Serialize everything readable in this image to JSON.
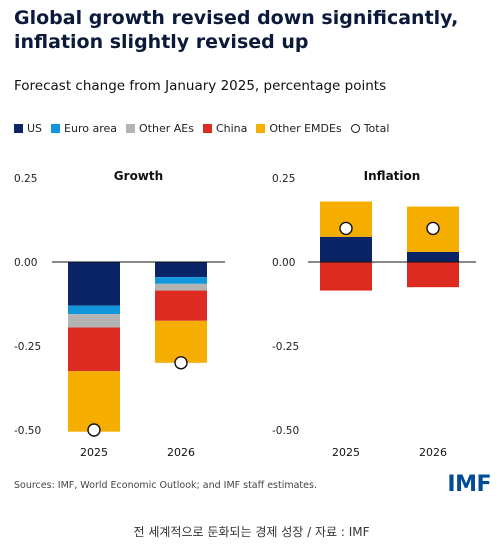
{
  "title": "Global growth revised down significantly, inflation slightly revised up",
  "subtitle": "Forecast change from January 2025, percentage points",
  "legend": [
    {
      "label": "US",
      "color": "#0a2467",
      "shape": "square"
    },
    {
      "label": "Euro area",
      "color": "#1296db",
      "shape": "square"
    },
    {
      "label": "Other AEs",
      "color": "#b3b3b3",
      "shape": "square"
    },
    {
      "label": "China",
      "color": "#dd2b22",
      "shape": "square"
    },
    {
      "label": "Other EMDEs",
      "color": "#f5ad00",
      "shape": "square"
    },
    {
      "label": "Total",
      "color": "#ffffff",
      "shape": "circle"
    }
  ],
  "source": "Sources: IMF, World Economic Outlook; and IMF staff estimates.",
  "logo": "IMF",
  "caption": "전 세계적으로 둔화되는 경제 성장 / 자료 : IMF",
  "chart_data": [
    {
      "type": "bar",
      "stacked": true,
      "title": "Growth",
      "categories": [
        "2025",
        "2026"
      ],
      "ylim": [
        -0.5,
        0.25
      ],
      "yticks": [
        "0.25",
        "0.00",
        "-0.25",
        "-0.50"
      ],
      "series": [
        {
          "name": "US",
          "color": "#0a2467",
          "values": [
            -0.13,
            -0.045
          ]
        },
        {
          "name": "Euro area",
          "color": "#1296db",
          "values": [
            -0.025,
            -0.02
          ]
        },
        {
          "name": "Other AEs",
          "color": "#b3b3b3",
          "values": [
            -0.04,
            -0.02
          ]
        },
        {
          "name": "China",
          "color": "#dd2b22",
          "values": [
            -0.13,
            -0.09
          ]
        },
        {
          "name": "Other EMDEs",
          "color": "#f5ad00",
          "values": [
            -0.18,
            -0.125
          ]
        }
      ],
      "total": {
        "name": "Total",
        "values": [
          -0.5,
          -0.3
        ]
      }
    },
    {
      "type": "bar",
      "stacked": true,
      "title": "Inflation",
      "categories": [
        "2025",
        "2026"
      ],
      "ylim": [
        -0.5,
        0.25
      ],
      "yticks": [
        "0.25",
        "0.00",
        "-0.25",
        "-0.50"
      ],
      "series": [
        {
          "name": "US",
          "color": "#0a2467",
          "values": [
            0.075,
            0.03
          ]
        },
        {
          "name": "China",
          "color": "#dd2b22",
          "values": [
            -0.085,
            -0.075
          ]
        },
        {
          "name": "Other EMDEs",
          "color": "#f5ad00",
          "values": [
            0.105,
            0.135
          ]
        }
      ],
      "total": {
        "name": "Total",
        "values": [
          0.1,
          0.1
        ]
      }
    }
  ]
}
